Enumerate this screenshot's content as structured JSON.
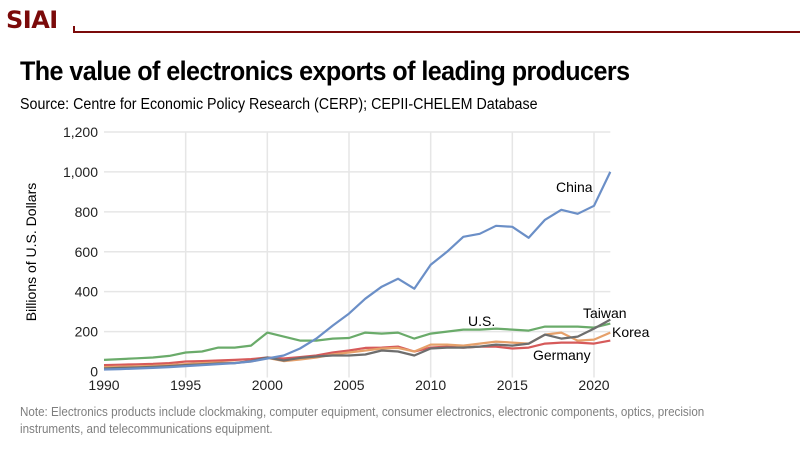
{
  "header": {
    "logo_text": "SIAI",
    "brand_color": "#7b0a0a"
  },
  "title": "The value of electronics exports of leading producers",
  "source": "Source: Centre for Economic Policy Research (CERP); CEPII-CHELEM Database",
  "note": "Note: Electronics products include clockmaking, computer equipment, consumer electronics, electronic components, optics, precision instruments, and telecommunications equipment.",
  "chart_data": {
    "type": "line",
    "title": "",
    "xlabel": "",
    "ylabel": "Billions of U.S. Dollars",
    "ylim": [
      0,
      1200
    ],
    "xlim": [
      1990,
      2021
    ],
    "y_ticks": [
      0,
      200,
      400,
      600,
      800,
      1000,
      1200
    ],
    "y_tick_labels": [
      "0",
      "200",
      "400",
      "600",
      "800",
      "1,000",
      "1,200"
    ],
    "x_ticks": [
      1990,
      1995,
      2000,
      2005,
      2010,
      2015,
      2020
    ],
    "x_tick_labels": [
      "1990",
      "1995",
      "2000",
      "2005",
      "2010",
      "2015",
      "2020"
    ],
    "grid": true,
    "legend": "direct-labels",
    "x": [
      1990,
      1991,
      1992,
      1993,
      1994,
      1995,
      1996,
      1997,
      1998,
      1999,
      2000,
      2001,
      2002,
      2003,
      2004,
      2005,
      2006,
      2007,
      2008,
      2009,
      2010,
      2011,
      2012,
      2013,
      2014,
      2015,
      2016,
      2017,
      2018,
      2019,
      2020,
      2021
    ],
    "series": [
      {
        "name": "China",
        "label": "China",
        "color": "#6b8fc7",
        "values": [
          10,
          12,
          15,
          18,
          22,
          27,
          32,
          37,
          42,
          50,
          65,
          80,
          115,
          165,
          230,
          290,
          365,
          425,
          465,
          415,
          535,
          600,
          675,
          690,
          730,
          725,
          670,
          760,
          810,
          790,
          830,
          1000
        ]
      },
      {
        "name": "U.S.",
        "label": "U.S.",
        "color": "#6aab6a",
        "values": [
          58,
          62,
          66,
          70,
          78,
          95,
          100,
          120,
          120,
          130,
          195,
          175,
          155,
          155,
          165,
          168,
          195,
          190,
          195,
          165,
          190,
          200,
          210,
          210,
          215,
          210,
          205,
          225,
          225,
          225,
          220,
          240
        ]
      },
      {
        "name": "Taiwan",
        "label": "Taiwan",
        "color": "#6e6e6e",
        "values": [
          15,
          18,
          20,
          23,
          27,
          32,
          36,
          40,
          42,
          52,
          70,
          55,
          68,
          75,
          80,
          80,
          85,
          105,
          100,
          80,
          115,
          120,
          120,
          125,
          135,
          130,
          140,
          185,
          165,
          175,
          215,
          260
        ]
      },
      {
        "name": "Korea",
        "label": "Korea",
        "color": "#e6a06a",
        "values": [
          22,
          24,
          26,
          28,
          32,
          37,
          42,
          45,
          44,
          50,
          68,
          52,
          60,
          70,
          85,
          95,
          105,
          115,
          118,
          100,
          135,
          135,
          130,
          140,
          150,
          145,
          140,
          185,
          195,
          155,
          160,
          195
        ]
      },
      {
        "name": "Germany",
        "label": "Germany",
        "color": "#d65a5a",
        "values": [
          32,
          34,
          36,
          38,
          42,
          50,
          52,
          55,
          58,
          62,
          70,
          65,
          72,
          80,
          95,
          105,
          118,
          120,
          125,
          100,
          120,
          125,
          120,
          125,
          125,
          115,
          120,
          140,
          145,
          145,
          140,
          155
        ]
      }
    ]
  }
}
